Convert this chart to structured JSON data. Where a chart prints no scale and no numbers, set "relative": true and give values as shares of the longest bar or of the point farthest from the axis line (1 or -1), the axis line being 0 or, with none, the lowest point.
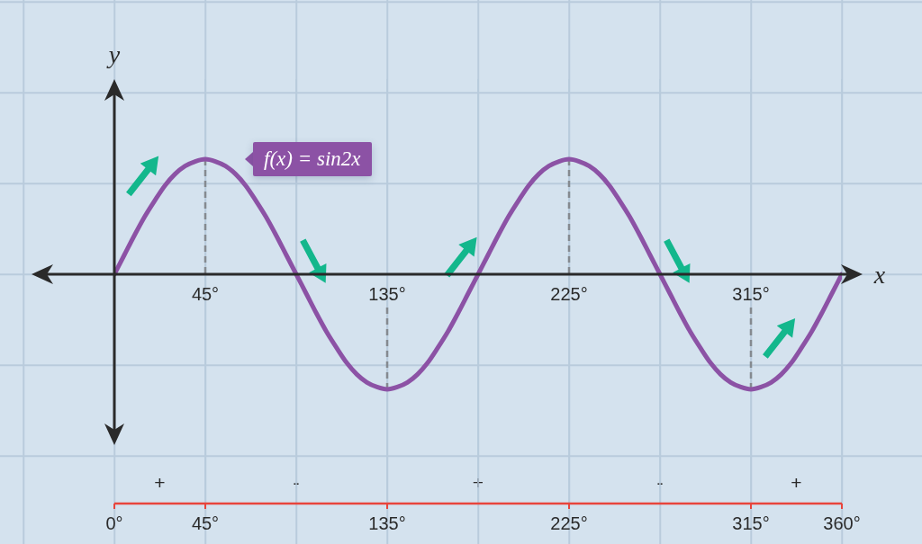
{
  "chart_data": {
    "type": "line",
    "xlabel": "x",
    "ylabel": "y",
    "relative": true,
    "x": [
      0,
      5,
      10,
      15,
      20,
      25,
      30,
      35,
      40,
      45,
      50,
      55,
      60,
      65,
      70,
      75,
      80,
      85,
      90,
      95,
      100,
      105,
      110,
      115,
      120,
      125,
      130,
      135,
      140,
      145,
      150,
      155,
      160,
      165,
      170,
      175,
      180,
      185,
      190,
      195,
      200,
      205,
      210,
      215,
      220,
      225,
      230,
      235,
      240,
      245,
      250,
      255,
      260,
      265,
      270,
      275,
      280,
      285,
      290,
      295,
      300,
      305,
      310,
      315,
      320,
      325,
      330,
      335,
      340,
      345,
      350,
      355,
      360
    ],
    "series": [
      {
        "name": "f(x) = sin2x",
        "color": "#8c52a5",
        "values": [
          0,
          0.17,
          0.34,
          0.5,
          0.64,
          0.77,
          0.87,
          0.94,
          0.98,
          1,
          0.98,
          0.94,
          0.87,
          0.77,
          0.64,
          0.5,
          0.34,
          0.17,
          0,
          -0.17,
          -0.34,
          -0.5,
          -0.64,
          -0.77,
          -0.87,
          -0.94,
          -0.98,
          -1,
          -0.98,
          -0.94,
          -0.87,
          -0.77,
          -0.64,
          -0.5,
          -0.34,
          -0.17,
          0,
          0.17,
          0.34,
          0.5,
          0.64,
          0.77,
          0.87,
          0.94,
          0.98,
          1,
          0.98,
          0.94,
          0.87,
          0.77,
          0.64,
          0.5,
          0.34,
          0.17,
          0,
          -0.17,
          -0.34,
          -0.5,
          -0.64,
          -0.77,
          -0.87,
          -0.94,
          -0.98,
          -1,
          -0.98,
          -0.94,
          -0.87,
          -0.77,
          -0.64,
          -0.5,
          -0.34,
          -0.17,
          0
        ]
      }
    ],
    "xlim": [
      0,
      360
    ],
    "xticks": [
      {
        "value": 0,
        "label": "0°"
      },
      {
        "value": 45,
        "label": "45°"
      },
      {
        "value": 135,
        "label": "135°"
      },
      {
        "value": 225,
        "label": "225°"
      },
      {
        "value": 315,
        "label": "315°"
      },
      {
        "value": 360,
        "label": "360°"
      }
    ],
    "ref_lines": [
      {
        "axis": "x",
        "value": 45,
        "label": "45°",
        "line_style": "dashed",
        "color": "#858a90"
      },
      {
        "axis": "x",
        "value": 135,
        "label": "135°",
        "line_style": "dashed",
        "color": "#858a90"
      },
      {
        "axis": "x",
        "value": 225,
        "label": "225°",
        "line_style": "dashed",
        "color": "#858a90"
      },
      {
        "axis": "x",
        "value": 315,
        "label": "315°",
        "line_style": "dashed",
        "color": "#858a90"
      }
    ],
    "annotations": [
      "+",
      "-",
      "+",
      "-",
      "+"
    ],
    "grid": true
  }
}
